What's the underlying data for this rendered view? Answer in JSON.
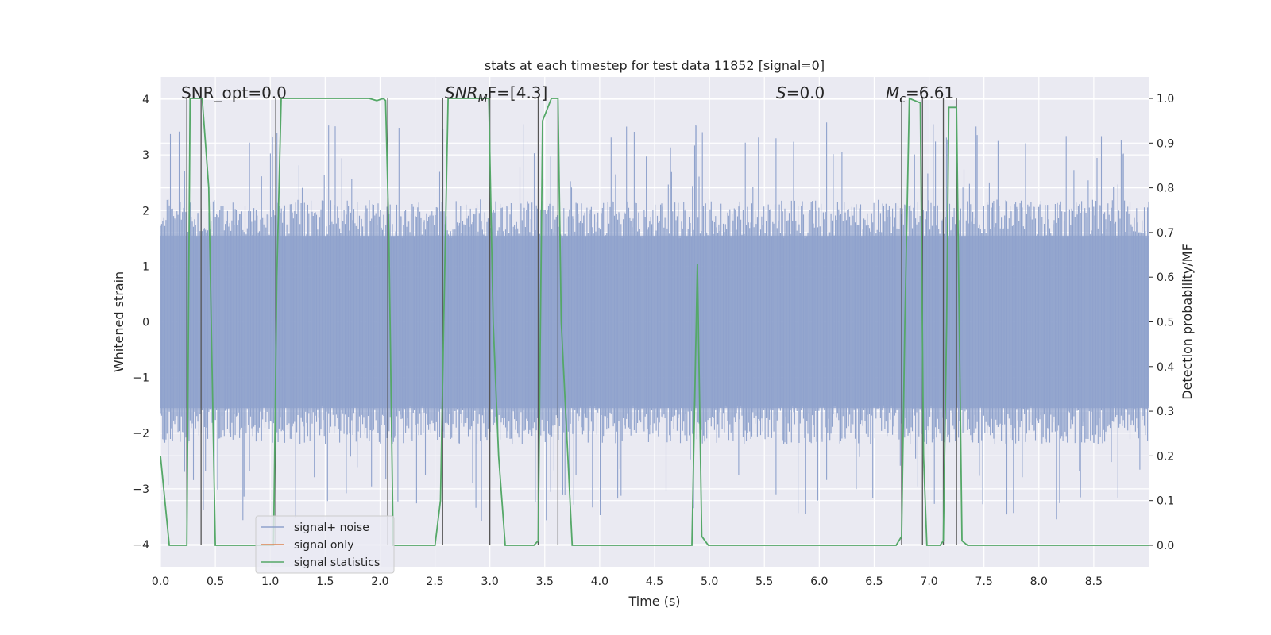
{
  "chart_data": {
    "type": "line",
    "title": "stats at each timestep for test data 11852 [signal=0]",
    "xlabel": "Time (s)",
    "ylabel": "Whitened strain",
    "y2label": "Detection probability/MF",
    "xlim": [
      0,
      9.0
    ],
    "ylim": [
      -4.4,
      4.4
    ],
    "y2lim": [
      -0.048,
      1.048
    ],
    "xticks": [
      "0.0",
      "0.5",
      "1.0",
      "1.5",
      "2.0",
      "2.5",
      "3.0",
      "3.5",
      "4.0",
      "4.5",
      "5.0",
      "5.5",
      "6.0",
      "6.5",
      "7.0",
      "7.5",
      "8.0",
      "8.5"
    ],
    "yticks": [
      "4",
      "3",
      "2",
      "1",
      "0",
      "−1",
      "−2",
      "−3",
      "−4"
    ],
    "y2ticks": [
      "1.0",
      "0.9",
      "0.8",
      "0.7",
      "0.6",
      "0.5",
      "0.4",
      "0.3",
      "0.2",
      "0.1",
      "0.0"
    ],
    "annotations": {
      "snr_opt": "SNR_opt=0.0",
      "snr_mf_main": "SNR",
      "snr_mf_sub": "M",
      "snr_mf_tail": "F=[4.3]",
      "s_var": "S",
      "s_val": "=0.0",
      "mc_var": "M",
      "mc_sub": "c",
      "mc_val": "=6.61"
    },
    "legend": {
      "placement": "lower-left",
      "entries": [
        "signal+ noise",
        "signal only",
        "signal statistics"
      ]
    },
    "colors": {
      "noise": "#8fa2cc",
      "signal": "#dd8452",
      "stats": "#55a868",
      "vline": "#555555",
      "panel": "#eaeaf2",
      "grid": "#ffffff"
    },
    "vlines": [
      0.24,
      0.37,
      1.05,
      2.07,
      2.57,
      3.0,
      3.44,
      3.62,
      6.75,
      6.94,
      7.13,
      7.25
    ],
    "series": [
      {
        "name": "signal statistics",
        "axis": "right",
        "x": [
          0.0,
          0.08,
          0.24,
          0.27,
          0.3,
          0.38,
          0.44,
          0.5,
          1.03,
          1.06,
          1.1,
          1.14,
          1.8,
          1.9,
          1.97,
          2.03,
          2.05,
          2.08,
          2.12,
          2.18,
          2.5,
          2.55,
          2.58,
          2.62,
          2.99,
          3.03,
          3.08,
          3.14,
          3.2,
          3.4,
          3.44,
          3.48,
          3.56,
          3.62,
          3.65,
          3.75,
          4.75,
          4.84,
          4.89,
          4.93,
          4.99,
          6.7,
          6.75,
          6.78,
          6.82,
          6.92,
          6.95,
          6.98,
          7.1,
          7.13,
          7.16,
          7.18,
          7.25,
          7.3,
          7.35,
          9.0
        ],
        "values": [
          0.2,
          0.0,
          0.0,
          1.0,
          1.0,
          1.0,
          0.8,
          0.0,
          0.0,
          0.6,
          1.0,
          1.0,
          1.0,
          1.0,
          0.995,
          1.0,
          0.995,
          0.7,
          0.0,
          0.0,
          0.0,
          0.1,
          0.5,
          1.0,
          1.0,
          0.5,
          0.2,
          0.0,
          0.0,
          0.0,
          0.01,
          0.95,
          1.0,
          1.0,
          0.5,
          0.0,
          0.0,
          0.0,
          0.63,
          0.02,
          0.0,
          0.0,
          0.02,
          0.5,
          1.0,
          0.99,
          0.2,
          0.0,
          0.0,
          0.01,
          0.5,
          0.98,
          0.98,
          0.01,
          0.0,
          0.0
        ]
      },
      {
        "name": "signal only",
        "axis": "left",
        "x": [
          0.0,
          9.0
        ],
        "values": [
          0.0,
          0.0
        ]
      },
      {
        "name": "signal+ noise",
        "axis": "left",
        "description": "whitened strain noise, sampled; amplitude ~±2 with spikes to ±3.5",
        "x_start": 0.0,
        "x_end": 9.0,
        "n_samples": 900,
        "typical_abs": 2.0,
        "peak_abs": 3.6
      }
    ]
  }
}
